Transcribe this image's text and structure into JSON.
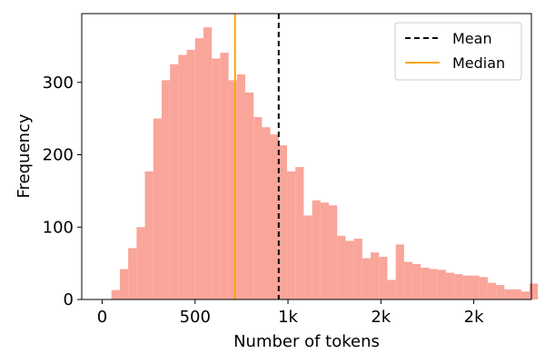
{
  "chart_data": {
    "type": "bar",
    "subtype": "histogram",
    "title": "",
    "xlabel": "Number of tokens",
    "ylabel": "Frequency",
    "xlim": [
      -110,
      2310
    ],
    "ylim": [
      0,
      395
    ],
    "x_ticks": [
      {
        "value": 0,
        "label": "0"
      },
      {
        "value": 500,
        "label": "500"
      },
      {
        "value": 1000,
        "label": "1k"
      },
      {
        "value": 1500,
        "label": "2k"
      },
      {
        "value": 2000,
        "label": "2k"
      }
    ],
    "y_ticks": [
      0,
      100,
      200,
      300
    ],
    "bin_start": 50,
    "bin_width": 45,
    "bar_color": "#f9a59a",
    "values": [
      13,
      42,
      71,
      100,
      177,
      250,
      303,
      325,
      338,
      345,
      361,
      376,
      333,
      341,
      303,
      311,
      286,
      252,
      238,
      228,
      213,
      177,
      183,
      116,
      137,
      134,
      130,
      88,
      81,
      84,
      57,
      65,
      59,
      27,
      76,
      52,
      49,
      44,
      42,
      41,
      37,
      35,
      33,
      33,
      31,
      23,
      20,
      14,
      14,
      11,
      22
    ],
    "grid": false,
    "legend": {
      "position": "top-right",
      "entries": [
        {
          "label": "Mean",
          "color": "#000000",
          "style": "dashed",
          "value": 950
        },
        {
          "label": "Median",
          "color": "#ffa500",
          "style": "solid",
          "value": 715
        }
      ]
    }
  }
}
